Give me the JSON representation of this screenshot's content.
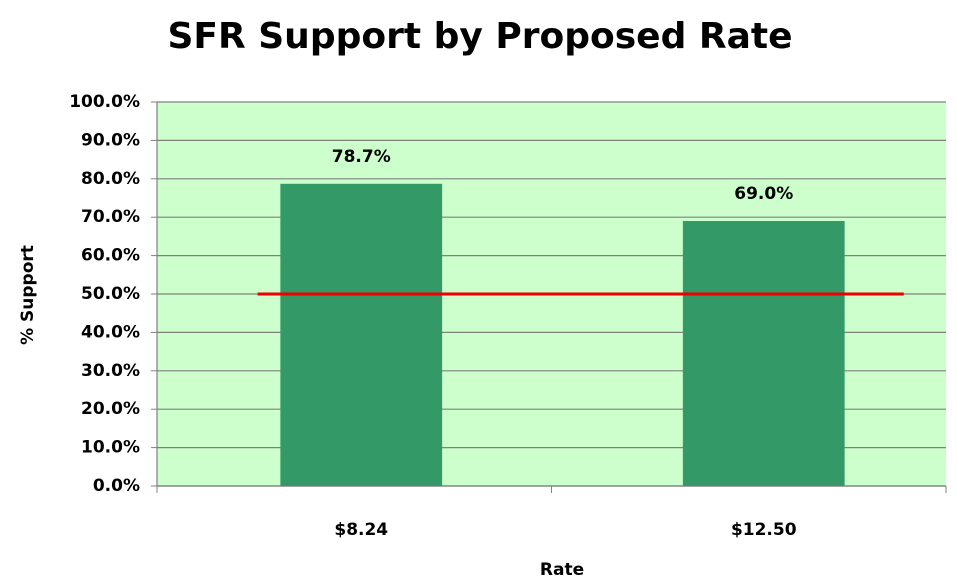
{
  "chart_data": {
    "type": "bar",
    "title": "SFR Support by Proposed Rate",
    "x_label": "Rate",
    "y_label": "% Support",
    "categories": [
      "$8.24",
      "$12.50"
    ],
    "values": [
      78.7,
      69.0
    ],
    "value_labels": [
      "78.7%",
      "69.0%"
    ],
    "color": "#339966",
    "ylim": [
      0,
      100
    ],
    "yticks": [
      {
        "value": 0,
        "label": "0.0%"
      },
      {
        "value": 10,
        "label": "10.0%"
      },
      {
        "value": 20,
        "label": "20.0%"
      },
      {
        "value": 30,
        "label": "30.0%"
      },
      {
        "value": 40,
        "label": "40.0%"
      },
      {
        "value": 50,
        "label": "50.0%"
      },
      {
        "value": 60,
        "label": "60.0%"
      },
      {
        "value": 70,
        "label": "70.0%"
      },
      {
        "value": 80,
        "label": "80.0%"
      },
      {
        "value": 90,
        "label": "90.0%"
      },
      {
        "value": 100,
        "label": "100.0%"
      }
    ],
    "grid": true,
    "plot_background": "#ccffcc",
    "reference_line": {
      "value": 50,
      "color": "#ee0000"
    }
  }
}
